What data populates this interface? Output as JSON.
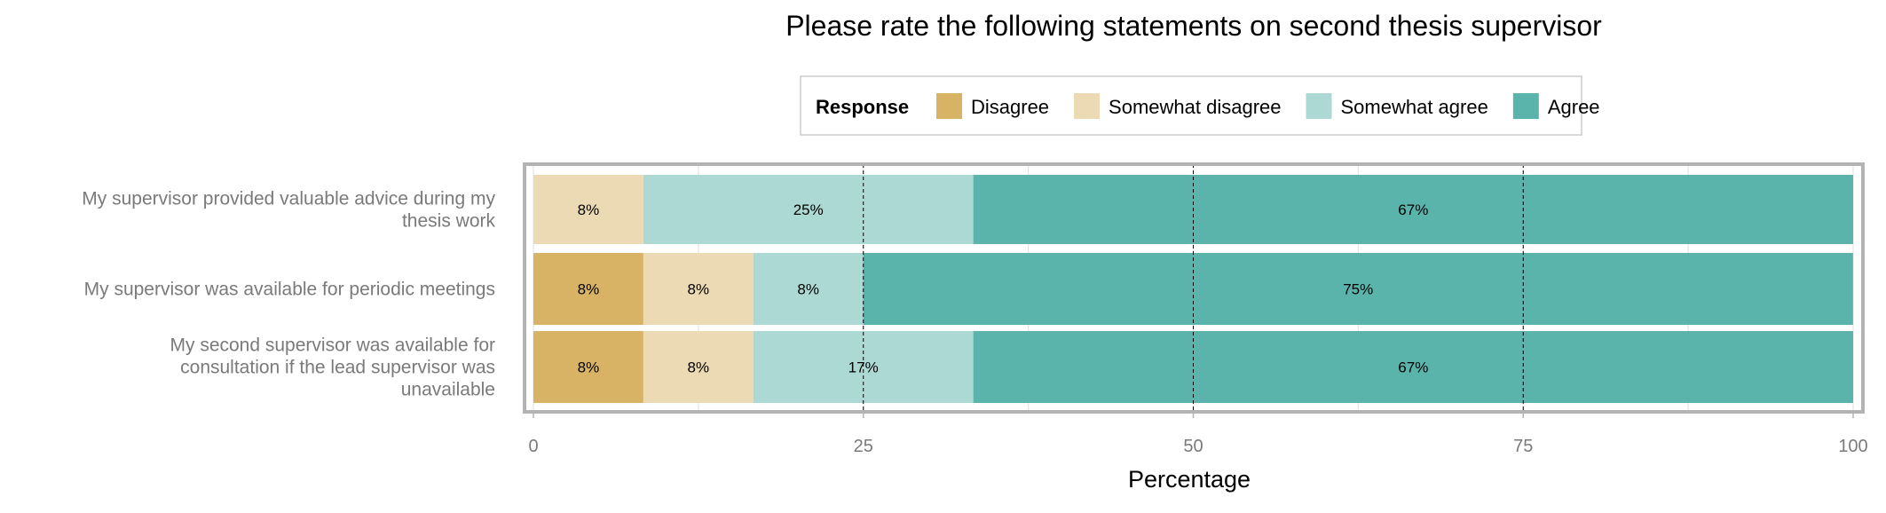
{
  "chart_data": {
    "type": "bar",
    "orientation": "horizontal",
    "stacked": true,
    "title": "Please rate the following statements on second thesis supervisor",
    "xlabel": "Percentage",
    "ylabel": "",
    "xlim": [
      0,
      100
    ],
    "xticks": [
      "0",
      "25",
      "50",
      "75",
      "100"
    ],
    "grid": true,
    "legend": {
      "title": "Response",
      "position": "top"
    },
    "categories": [
      [
        "My supervisor provided valuable advice during my",
        "thesis work"
      ],
      [
        "My supervisor was available for periodic meetings"
      ],
      [
        "My second supervisor was available for",
        "consultation if the lead supervisor was",
        "unavailable"
      ]
    ],
    "series": [
      {
        "name": "Disagree",
        "color": "#D8B365",
        "values": [
          0,
          8.33,
          8.33
        ],
        "labels": [
          "",
          "8%",
          "8%"
        ]
      },
      {
        "name": "Somewhat disagree",
        "color": "#EBDAB3",
        "values": [
          8.33,
          8.33,
          8.33
        ],
        "labels": [
          "8%",
          "8%",
          "8%"
        ]
      },
      {
        "name": "Somewhat agree",
        "color": "#ADD9D5",
        "values": [
          25,
          8.33,
          16.67
        ],
        "labels": [
          "25%",
          "8%",
          "17%"
        ]
      },
      {
        "name": "Agree",
        "color": "#5AB4AC",
        "values": [
          66.67,
          75,
          66.67
        ],
        "labels": [
          "67%",
          "75%",
          "67%"
        ]
      }
    ]
  }
}
